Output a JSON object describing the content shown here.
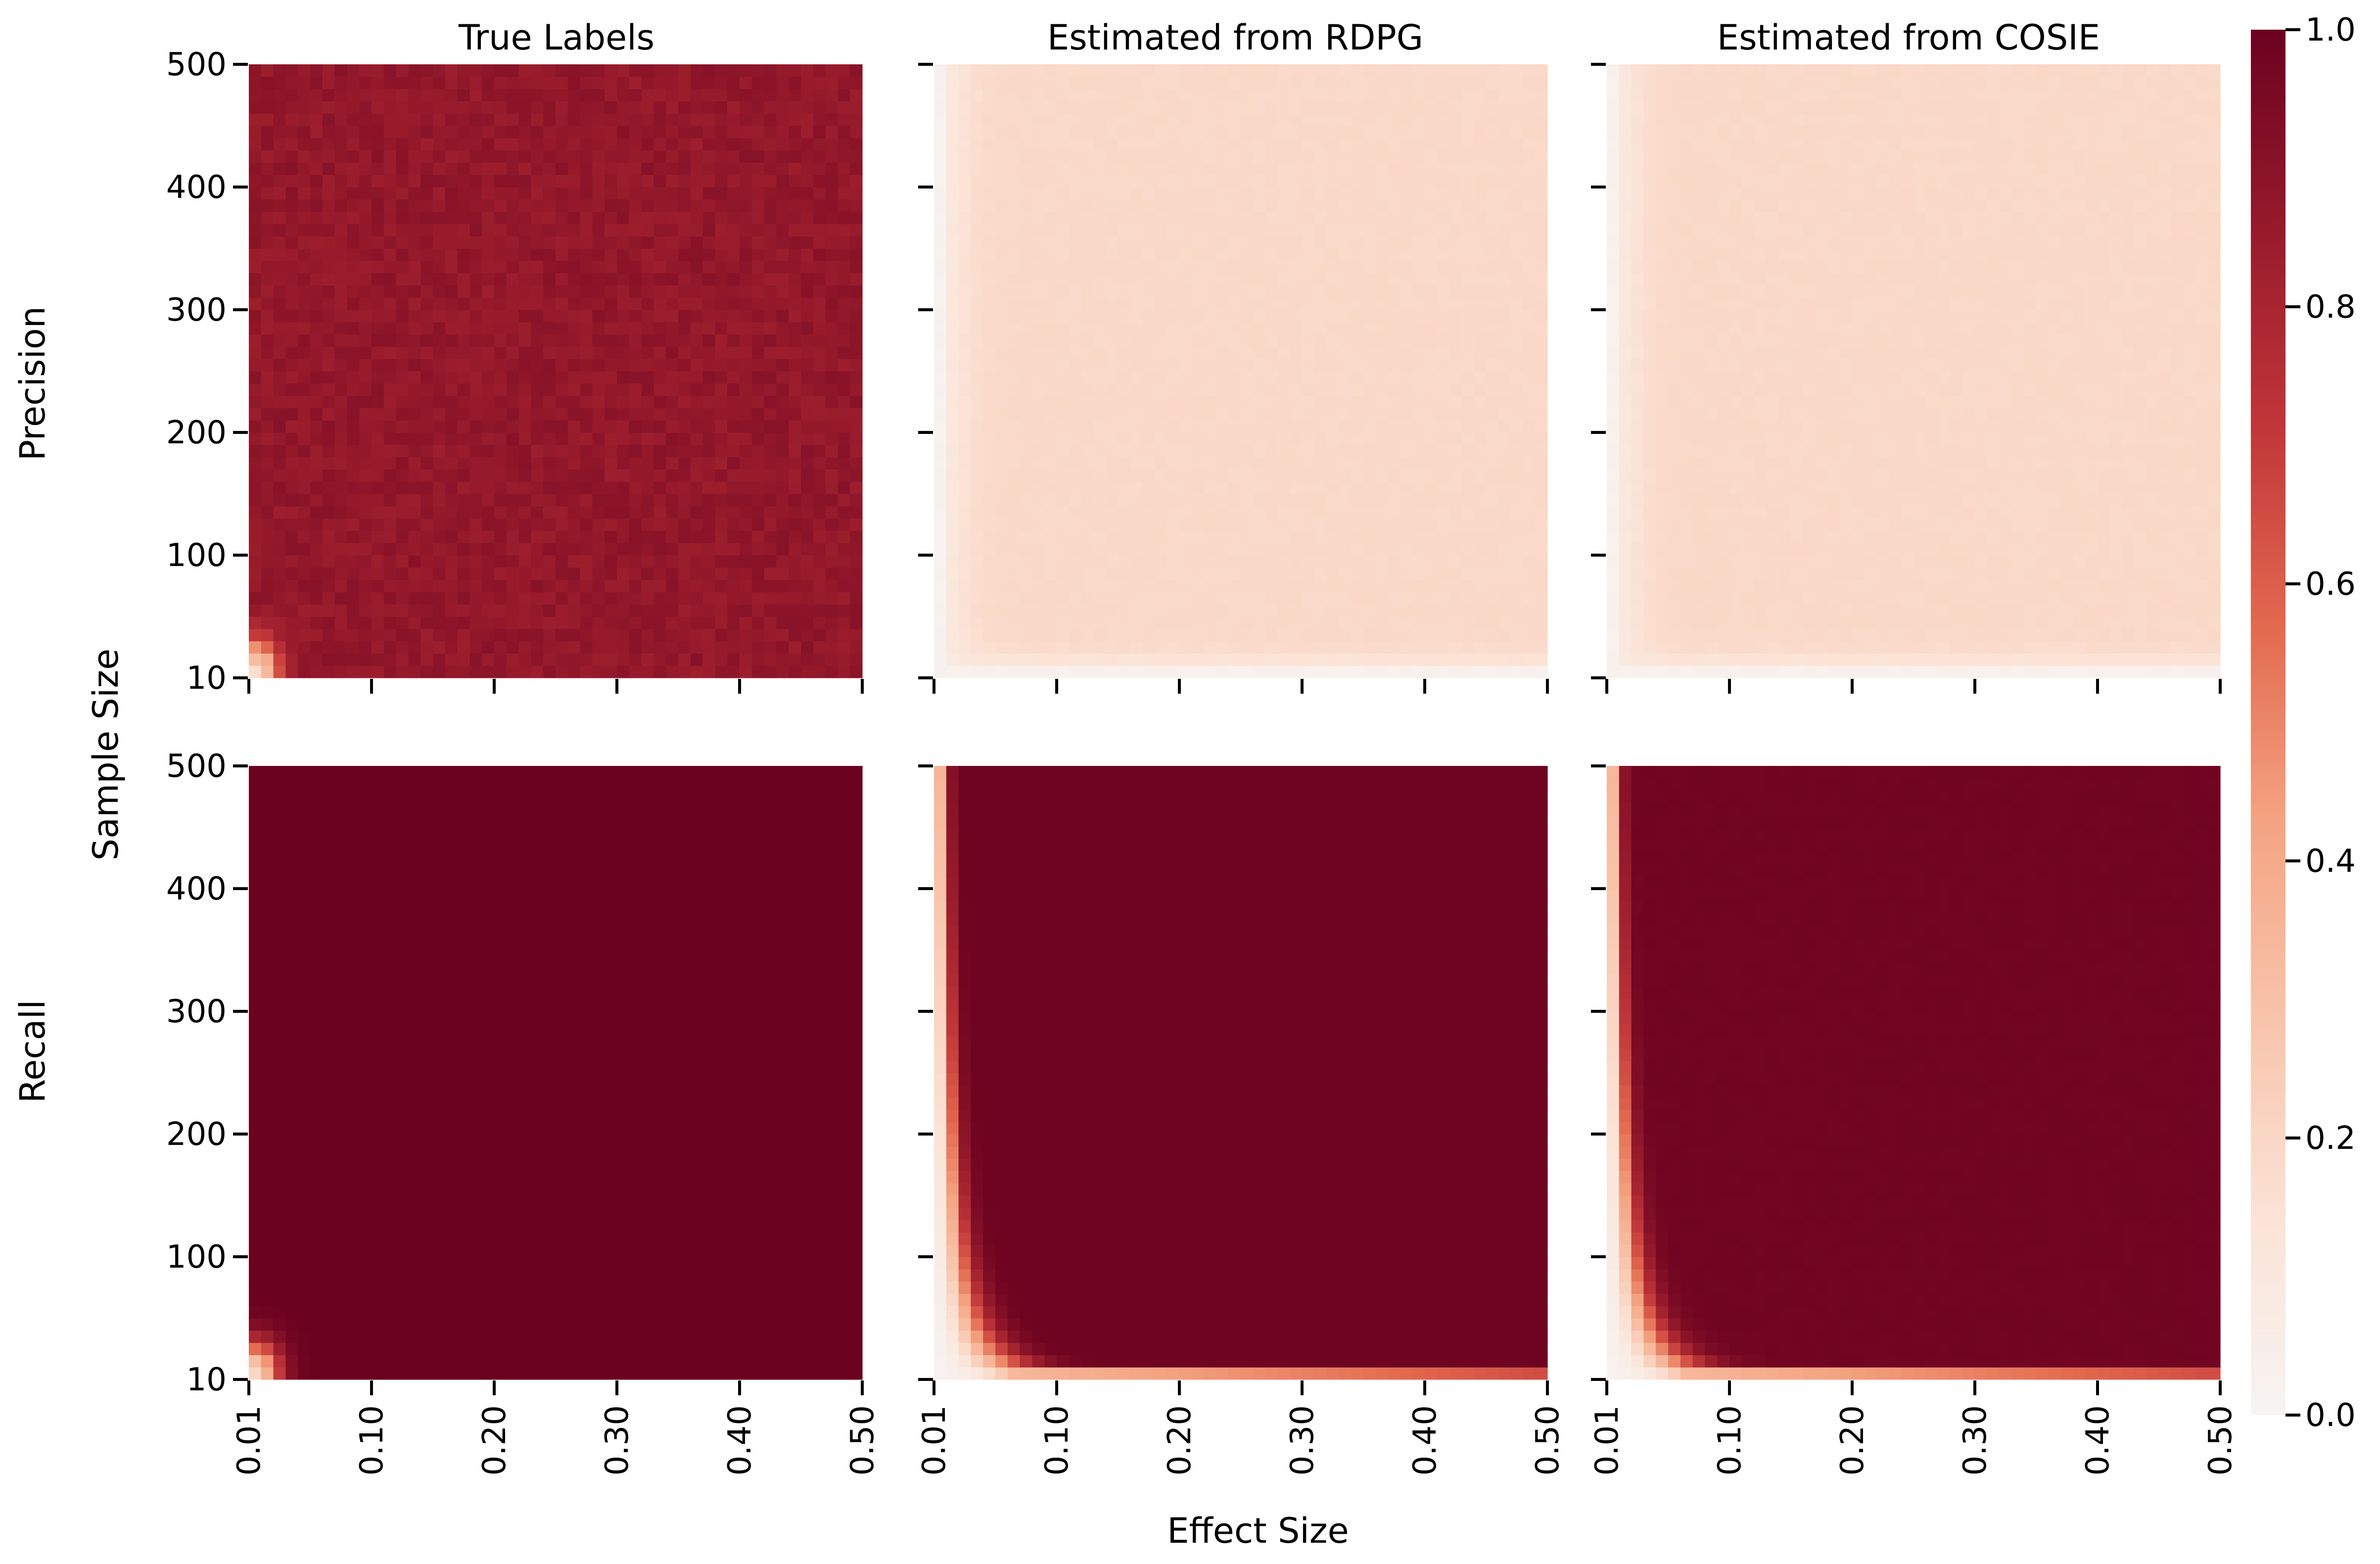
{
  "chart_data": {
    "type": "heatmap",
    "x_label": "Effect Size",
    "y_label": "Sample Size",
    "x_tick_labels": [
      "0.01",
      "0.10",
      "0.20",
      "0.30",
      "0.40",
      "0.50"
    ],
    "y_tick_labels": [
      "10",
      "100",
      "200",
      "300",
      "400",
      "500"
    ],
    "x_range": [
      0.01,
      0.5
    ],
    "y_range": [
      10,
      500
    ],
    "grid_resolution": 50,
    "row_labels": [
      "Precision",
      "Recall"
    ],
    "column_titles": [
      "True Labels",
      "Estimated from RDPG",
      "Estimated from COSIE"
    ],
    "colorbar": {
      "range": [
        0.0,
        1.0
      ],
      "tick_labels": [
        "0.0",
        "0.2",
        "0.4",
        "0.6",
        "0.8",
        "1.0"
      ],
      "colormap": "Reds",
      "colors": [
        "#f7f4f2",
        "#fbe3d6",
        "#f8c4ab",
        "#f4a482",
        "#e2684e",
        "#c13639",
        "#961a2b",
        "#6b0220"
      ]
    },
    "panels": [
      {
        "row": "Precision",
        "column": "True Labels",
        "summary": "High precision nearly everywhere; low only at smallest effect and sample sizes",
        "plateau_value": 0.87,
        "noise": 0.035,
        "corner_low_value": 0.2
      },
      {
        "row": "Precision",
        "column": "Estimated from RDPG",
        "summary": "Flat low precision with a light near-zero band at smallest effect/sample sizes",
        "plateau_value": 0.19,
        "noise": 0.006,
        "corner_low_value": 0.03
      },
      {
        "row": "Precision",
        "column": "Estimated from COSIE",
        "summary": "Flat low precision with a light near-zero band at smallest effect/sample sizes",
        "plateau_value": 0.19,
        "noise": 0.006,
        "corner_low_value": 0.03
      },
      {
        "row": "Recall",
        "column": "True Labels",
        "summary": "Recall at 1.0 everywhere except the smallest effect and sample sizes",
        "plateau_value": 1.0,
        "noise": 0.0,
        "corner_low_value": 0.2
      },
      {
        "row": "Recall",
        "column": "Estimated from RDPG",
        "summary": "Recall near 1.0 once effect and sample sizes exceed a small threshold; low near 0.01 effect size and 10 samples",
        "plateau_value": 0.99,
        "noise": 0.0,
        "corner_low_value": 0.02
      },
      {
        "row": "Recall",
        "column": "Estimated from COSIE",
        "summary": "Recall near 1.0 once effect and sample sizes exceed a small threshold; low near 0.01 effect size and 10 samples",
        "plateau_value": 0.98,
        "noise": 0.004,
        "corner_low_value": 0.02
      }
    ]
  }
}
